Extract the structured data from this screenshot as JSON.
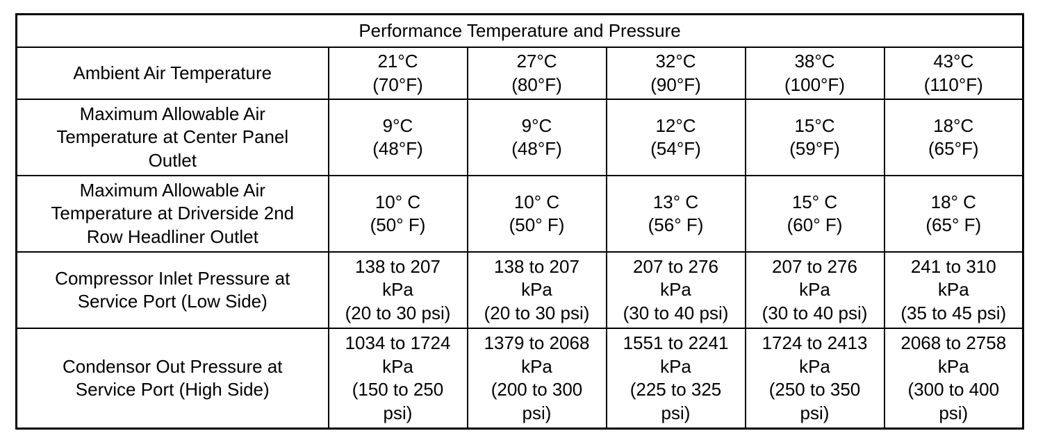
{
  "table": {
    "title": "Performance Temperature and Pressure",
    "rows": [
      {
        "label": "Ambient Air Temperature",
        "values": [
          "21°C\n(70°F)",
          "27°C\n(80°F)",
          "32°C\n(90°F)",
          "38°C\n(100°F)",
          "43°C\n(110°F)"
        ]
      },
      {
        "label": "Maximum Allowable Air\nTemperature at Center Panel\nOutlet",
        "values": [
          "9°C\n(48°F)",
          "9°C\n(48°F)",
          "12°C\n(54°F)",
          "15°C\n(59°F)",
          "18°C\n(65°F)"
        ]
      },
      {
        "label": "Maximum Allowable Air\nTemperature at Driverside 2nd\nRow Headliner Outlet",
        "values": [
          "10° C\n(50° F)",
          "10° C\n(50° F)",
          "13° C\n(56° F)",
          "15° C\n(60° F)",
          "18° C\n(65° F)"
        ]
      },
      {
        "label": "Compressor Inlet Pressure at\nService Port (Low Side)",
        "values": [
          "138 to 207\nkPa\n(20 to 30 psi)",
          "138 to 207\nkPa\n(20 to 30 psi)",
          "207 to 276\nkPa\n(30 to 40 psi)",
          "207 to 276\nkPa\n(30 to 40 psi)",
          "241 to 310\nkPa\n(35 to 45 psi)"
        ]
      },
      {
        "label": "Condensor Out Pressure at\nService Port (High Side)",
        "values": [
          "1034 to 1724\nkPa\n(150 to 250\npsi)",
          "1379 to 2068\nkPa\n(200 to 300\npsi)",
          "1551 to 2241\nkPa\n(225 to 325\npsi)",
          "1724 to 2413\nkPa\n(250 to 350\npsi)",
          "2068 to 2758\nkPa\n(300 to 400\npsi)"
        ]
      }
    ]
  }
}
